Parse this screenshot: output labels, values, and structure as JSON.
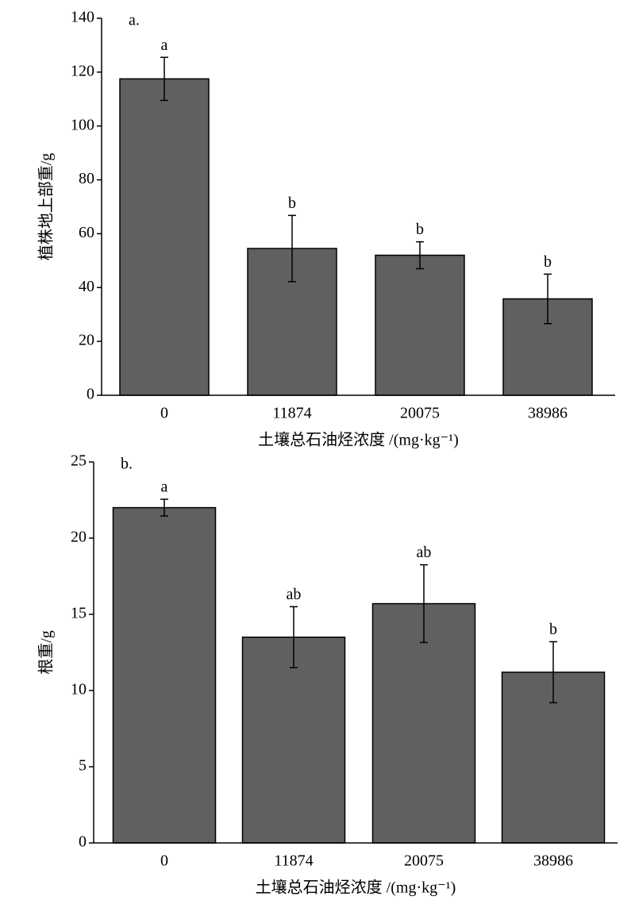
{
  "chart_data": [
    {
      "type": "bar",
      "panel_label": "a.",
      "ylabel": "植株地上部重/g",
      "xlabel": "土壤总石油烃浓度 /(mg·kg⁻¹)",
      "categories": [
        "0",
        "11874",
        "20075",
        "38986"
      ],
      "values": [
        117.5,
        54.5,
        52,
        35.8
      ],
      "errors": [
        8,
        12.3,
        5,
        9.2
      ],
      "annotations": [
        "a",
        "b",
        "b",
        "b"
      ],
      "color": "#606060",
      "ylim": [
        0,
        140
      ],
      "yticks": [
        0,
        20,
        40,
        60,
        80,
        100,
        120,
        140
      ]
    },
    {
      "type": "bar",
      "panel_label": "b.",
      "ylabel": "根重/g",
      "xlabel": "土壤总石油烃浓度 /(mg·kg⁻¹)",
      "categories": [
        "0",
        "11874",
        "20075",
        "38986"
      ],
      "values": [
        22.0,
        13.5,
        15.7,
        11.2
      ],
      "errors": [
        0.55,
        2.0,
        2.55,
        2.0
      ],
      "annotations": [
        "a",
        "ab",
        "ab",
        "b"
      ],
      "color": "#606060",
      "ylim": [
        0,
        25
      ],
      "yticks": [
        0,
        5,
        10,
        15,
        20,
        25
      ]
    }
  ]
}
